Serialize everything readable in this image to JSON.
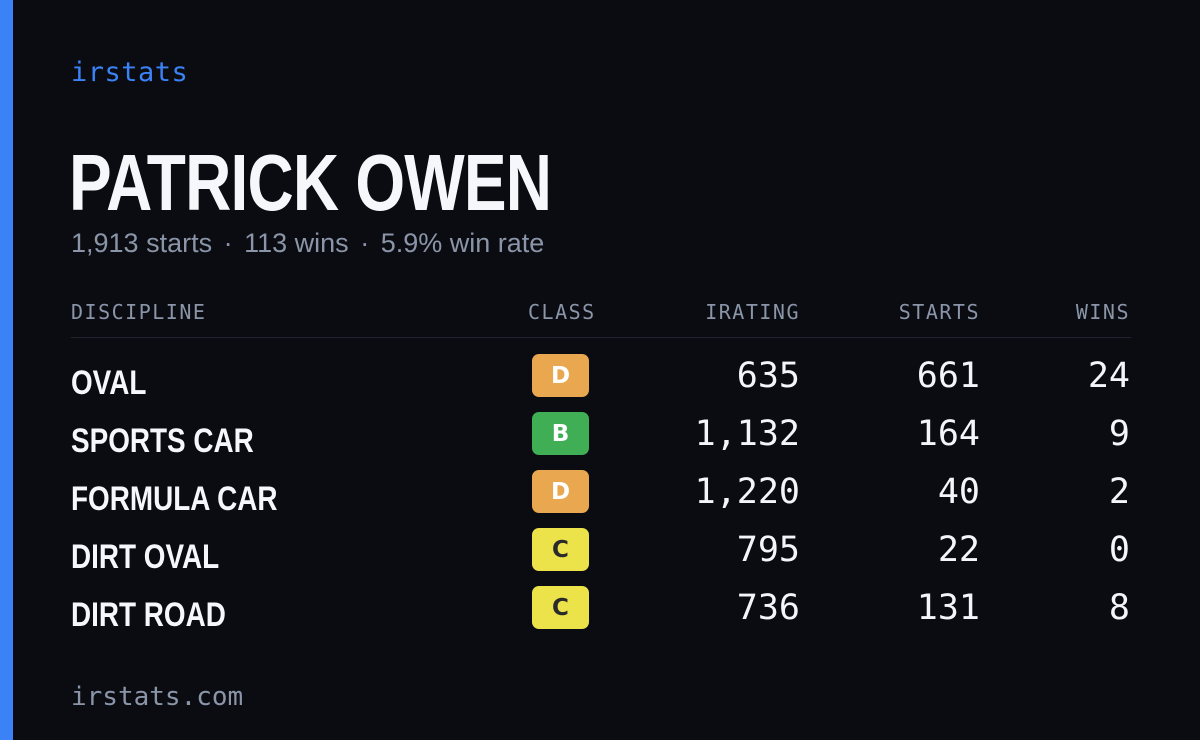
{
  "brand": "irstats",
  "player": {
    "name": "PATRICK OWEN",
    "starts": "1,913 starts",
    "wins": "113 wins",
    "win_rate": "5.9% win rate",
    "separator": "·"
  },
  "table": {
    "headers": {
      "discipline": "DISCIPLINE",
      "class": "CLASS",
      "irating": "IRATING",
      "starts": "STARTS",
      "wins": "WINS"
    },
    "rows": [
      {
        "discipline": "OVAL",
        "class": "D",
        "class_color": "#e9a74f",
        "class_text_color": "#ffffff",
        "irating": "635",
        "starts": "661",
        "wins": "24"
      },
      {
        "discipline": "SPORTS CAR",
        "class": "B",
        "class_color": "#3fae54",
        "class_text_color": "#ffffff",
        "irating": "1,132",
        "starts": "164",
        "wins": "9"
      },
      {
        "discipline": "FORMULA CAR",
        "class": "D",
        "class_color": "#e9a74f",
        "class_text_color": "#ffffff",
        "irating": "1,220",
        "starts": "40",
        "wins": "2"
      },
      {
        "discipline": "DIRT OVAL",
        "class": "C",
        "class_color": "#ece24a",
        "class_text_color": "#2a2a2a",
        "irating": "795",
        "starts": "22",
        "wins": "0"
      },
      {
        "discipline": "DIRT ROAD",
        "class": "C",
        "class_color": "#ece24a",
        "class_text_color": "#2a2a2a",
        "irating": "736",
        "starts": "131",
        "wins": "8"
      }
    ]
  },
  "footer": "irstats.com",
  "colors": {
    "background": "#0a0c12",
    "accent": "#3b82f6",
    "muted_text": "#8b95a8",
    "primary_text": "#f6f7fb"
  }
}
